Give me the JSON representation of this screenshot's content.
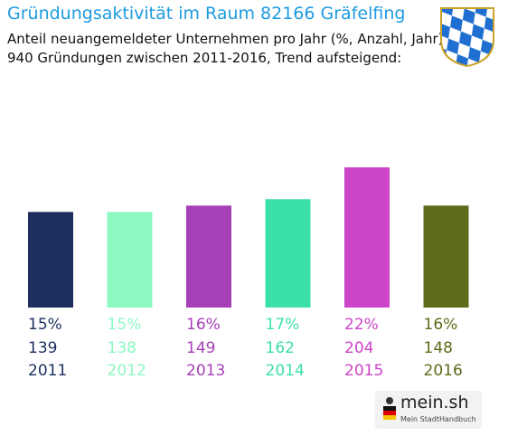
{
  "header": {
    "title": "Gründungsaktivität im Raum 82166 Gräfelfing",
    "subtitle_line1": "Anteil neuangemeldeter Unternehmen pro Jahr (%, Anzahl, Jahr)",
    "subtitle_line2": "940 Gründungen zwischen 2011-2016, Trend aufsteigend:"
  },
  "brand": {
    "name": "mein.sh",
    "tagline": "Mein StadtHandbuch"
  },
  "crest_icon": "bavaria-crest-icon",
  "chart_data": {
    "type": "bar",
    "title": "Gründungsaktivität im Raum 82166 Gräfelfing",
    "xlabel": "",
    "ylabel": "",
    "ylim": [
      0,
      22
    ],
    "grid": false,
    "categories": [
      "2011",
      "2012",
      "2013",
      "2014",
      "2015",
      "2016"
    ],
    "percent_labels": [
      "15%",
      "15%",
      "16%",
      "17%",
      "22%",
      "16%"
    ],
    "values": [
      15,
      15,
      16,
      17,
      22,
      16
    ],
    "counts": [
      139,
      138,
      149,
      162,
      204,
      148
    ],
    "colors": [
      "#1c2f5e",
      "#8ef8c2",
      "#a640b6",
      "#3be0a6",
      "#cc44c8",
      "#5e6b1a"
    ]
  }
}
